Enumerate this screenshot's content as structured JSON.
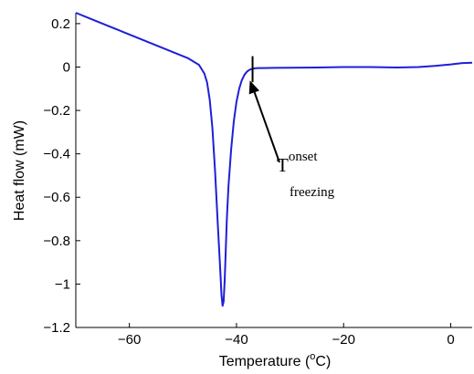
{
  "chart_data": {
    "type": "line",
    "xlabel": "Temperature (",
    "xlabel_sup": "o",
    "xlabel_suffix": "C)",
    "ylabel": "Heat flow (mW)",
    "xlim": [
      -70,
      4
    ],
    "ylim": [
      -1.2,
      0.25
    ],
    "xticks": [
      -60,
      -40,
      -20,
      0
    ],
    "xtick_labels": [
      "−60",
      "−40",
      "−20",
      "0"
    ],
    "yticks": [
      0.2,
      0,
      -0.2,
      -0.4,
      -0.6,
      -0.8,
      -1,
      -1.2
    ],
    "ytick_labels": [
      "0.2",
      "0",
      "−0.2",
      "−0.4",
      "−0.6",
      "−0.8",
      "−1",
      "−1.2"
    ],
    "grid": false,
    "line_color": "#1f1fd6",
    "series": [
      {
        "x": [
          -70,
          -67,
          -64,
          -61,
          -58,
          -55,
          -52,
          -49,
          -47,
          -46,
          -45.5,
          -45,
          -44.5,
          -44,
          -43.5,
          -43,
          -42.8,
          -42.6,
          -42.4,
          -42.2,
          -42,
          -41.8,
          -41.5,
          -41,
          -40.5,
          -40,
          -39.5,
          -39,
          -38.5,
          -38,
          -37.5,
          -37,
          -36.5,
          -36,
          -35,
          -33,
          -30,
          -25,
          -20,
          -15,
          -10,
          -6,
          -3,
          0,
          2,
          4
        ],
        "y": [
          0.25,
          0.22,
          0.19,
          0.16,
          0.13,
          0.1,
          0.07,
          0.04,
          0.01,
          -0.03,
          -0.07,
          -0.15,
          -0.28,
          -0.48,
          -0.72,
          -0.95,
          -1.05,
          -1.1,
          -1.08,
          -0.98,
          -0.84,
          -0.7,
          -0.55,
          -0.38,
          -0.25,
          -0.16,
          -0.1,
          -0.06,
          -0.035,
          -0.02,
          -0.012,
          -0.008,
          -0.006,
          -0.005,
          -0.005,
          -0.004,
          -0.003,
          -0.002,
          0.0,
          0.0,
          -0.002,
          0.0,
          0.005,
          0.012,
          0.018,
          0.02
        ]
      }
    ],
    "onset_marker_x": -37,
    "annotation": {
      "main": "T",
      "sup": "onset",
      "sub": "freezing",
      "points_to": [
        -37.5,
        -0.02
      ]
    }
  }
}
